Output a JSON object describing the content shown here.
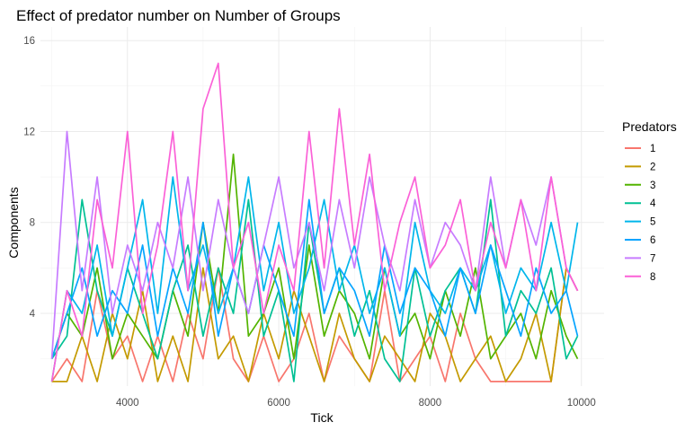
{
  "chart_data": {
    "type": "line",
    "title": "Effect of predator number on Number of Groups",
    "xlabel": "Tick",
    "ylabel": "Components",
    "xlim": [
      2850,
      10300
    ],
    "ylim": [
      0.8,
      16.6
    ],
    "x_ticks": [
      4000,
      6000,
      8000,
      10000
    ],
    "x_tick_labels": [
      "4000",
      "6000",
      "8000",
      "10000"
    ],
    "y_ticks": [
      4,
      8,
      12,
      16
    ],
    "y_tick_labels": [
      "4",
      "8",
      "12",
      "16"
    ],
    "grid": true,
    "legend": {
      "title": "Predators",
      "position": "right"
    },
    "series": [
      {
        "name": "1",
        "color": "#F8766D",
        "x": [
          3000,
          3200,
          3400,
          3600,
          3800,
          4000,
          4200,
          4400,
          4600,
          4800,
          5000,
          5200,
          5400,
          5600,
          5800,
          6000,
          6200,
          6400,
          6600,
          6800,
          7000,
          7200,
          7400,
          7600,
          7800,
          8000,
          8200,
          8400,
          8600,
          8800,
          9000,
          9200,
          9400,
          9600,
          9800,
          9950
        ],
        "y": [
          1,
          2,
          1,
          5,
          2,
          3,
          1,
          3,
          1,
          4,
          2,
          6,
          2,
          1,
          3,
          1,
          2,
          4,
          1,
          3,
          2,
          1,
          5,
          1,
          2,
          3,
          1,
          4,
          2,
          1,
          1,
          1,
          1,
          1,
          6,
          5
        ]
      },
      {
        "name": "2",
        "color": "#C49A00",
        "x": [
          3000,
          3200,
          3400,
          3600,
          3800,
          4000,
          4200,
          4400,
          4600,
          4800,
          5000,
          5200,
          5400,
          5600,
          5800,
          6000,
          6200,
          6400,
          6600,
          6800,
          7000,
          7200,
          7400,
          7600,
          7800,
          8000,
          8200,
          8400,
          8600,
          8800,
          9000,
          9200,
          9400,
          9600,
          9800,
          9950
        ],
        "y": [
          1,
          1,
          3,
          1,
          4,
          2,
          5,
          1,
          3,
          1,
          6,
          2,
          3,
          1,
          4,
          2,
          5,
          3,
          1,
          4,
          2,
          1,
          3,
          2,
          1,
          4,
          3,
          1,
          2,
          3,
          1,
          2,
          4,
          1,
          6,
          5
        ]
      },
      {
        "name": "3",
        "color": "#53B400",
        "x": [
          3000,
          3200,
          3400,
          3600,
          3800,
          4000,
          4200,
          4400,
          4600,
          4800,
          5000,
          5200,
          5400,
          5600,
          5800,
          6000,
          6200,
          6400,
          6600,
          6800,
          7000,
          7200,
          7400,
          7600,
          7800,
          8000,
          8200,
          8400,
          8600,
          8800,
          9000,
          9200,
          9400,
          9600,
          9800,
          9950
        ],
        "y": [
          2,
          4,
          3,
          6,
          2,
          4,
          3,
          2,
          5,
          3,
          8,
          4,
          11,
          3,
          4,
          6,
          2,
          7,
          3,
          5,
          4,
          2,
          6,
          3,
          4,
          2,
          5,
          3,
          6,
          2,
          3,
          4,
          2,
          5,
          3,
          2
        ]
      },
      {
        "name": "4",
        "color": "#00C094",
        "x": [
          3000,
          3200,
          3400,
          3600,
          3800,
          4000,
          4200,
          4400,
          4600,
          4800,
          5000,
          5200,
          5400,
          5600,
          5800,
          6000,
          6200,
          6400,
          6600,
          6800,
          7000,
          7200,
          7400,
          7600,
          7800,
          8000,
          8200,
          8400,
          8600,
          8800,
          9000,
          9200,
          9400,
          9600,
          9800,
          9950
        ],
        "y": [
          2,
          3,
          9,
          5,
          3,
          6,
          4,
          2,
          5,
          7,
          3,
          6,
          4,
          9,
          3,
          5,
          1,
          8,
          4,
          6,
          3,
          5,
          2,
          1,
          6,
          3,
          5,
          6,
          4,
          9,
          3,
          5,
          4,
          6,
          2,
          3
        ]
      },
      {
        "name": "5",
        "color": "#00B6EB",
        "x": [
          3000,
          3200,
          3400,
          3600,
          3800,
          4000,
          4200,
          4400,
          4600,
          4800,
          5000,
          5200,
          5400,
          5600,
          5800,
          6000,
          6200,
          6400,
          6600,
          6800,
          7000,
          7200,
          7400,
          7600,
          7800,
          8000,
          8200,
          8400,
          8600,
          8800,
          9000,
          9200,
          9400,
          9600,
          9800,
          9950
        ],
        "y": [
          1,
          5,
          4,
          7,
          3,
          6,
          9,
          4,
          10,
          5,
          7,
          4,
          6,
          10,
          5,
          8,
          4,
          6,
          9,
          5,
          7,
          4,
          6,
          3,
          8,
          5,
          4,
          6,
          5,
          7,
          4,
          6,
          5,
          8,
          5,
          8
        ]
      },
      {
        "name": "6",
        "color": "#06A4FF",
        "x": [
          3000,
          3200,
          3400,
          3600,
          3800,
          4000,
          4200,
          4400,
          4600,
          4800,
          5000,
          5200,
          5400,
          5600,
          5800,
          6000,
          6200,
          6400,
          6600,
          6800,
          7000,
          7200,
          7400,
          7600,
          7800,
          8000,
          8200,
          8400,
          8600,
          8800,
          9000,
          9200,
          9400,
          9600,
          9800,
          9950
        ],
        "y": [
          2,
          4,
          6,
          3,
          5,
          4,
          7,
          3,
          6,
          4,
          8,
          3,
          6,
          4,
          7,
          5,
          3,
          9,
          4,
          6,
          5,
          3,
          7,
          4,
          6,
          5,
          3,
          6,
          4,
          7,
          5,
          3,
          6,
          4,
          5,
          3
        ]
      },
      {
        "name": "7",
        "color": "#C77CFF",
        "x": [
          3000,
          3200,
          3400,
          3600,
          3800,
          4000,
          4200,
          4400,
          4600,
          4800,
          5000,
          5200,
          5400,
          5600,
          5800,
          6000,
          6200,
          6400,
          6600,
          6800,
          7000,
          7200,
          7400,
          7600,
          7800,
          8000,
          8200,
          8400,
          8600,
          8800,
          9000,
          9200,
          9400,
          9600,
          9800,
          9950
        ],
        "y": [
          2,
          12,
          5,
          10,
          4,
          7,
          5,
          8,
          6,
          10,
          5,
          9,
          6,
          4,
          7,
          10,
          6,
          8,
          5,
          9,
          6,
          10,
          7,
          5,
          9,
          6,
          8,
          7,
          5,
          10,
          6,
          9,
          7,
          10,
          6,
          5
        ]
      },
      {
        "name": "8",
        "color": "#FB61D7",
        "x": [
          3000,
          3200,
          3400,
          3600,
          3800,
          4000,
          4200,
          4400,
          4600,
          4800,
          5000,
          5200,
          5400,
          5600,
          5800,
          6000,
          6200,
          6400,
          6600,
          6800,
          7000,
          7200,
          7400,
          7600,
          7800,
          8000,
          8200,
          8400,
          8600,
          8800,
          9000,
          9200,
          9400,
          9600,
          9800,
          9950
        ],
        "y": [
          1,
          5,
          3,
          9,
          6,
          12,
          4,
          7,
          12,
          5,
          13,
          15,
          6,
          8,
          4,
          7,
          5,
          12,
          6,
          13,
          7,
          11,
          5,
          8,
          10,
          6,
          7,
          9,
          5,
          8,
          6,
          9,
          5,
          10,
          6,
          5
        ]
      }
    ]
  }
}
